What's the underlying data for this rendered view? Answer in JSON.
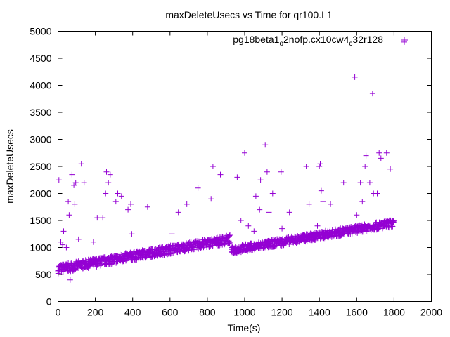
{
  "chart_data": {
    "type": "scatter",
    "title": "maxDeleteUsecs vs Time for qr100.L1",
    "xlabel": "Time(s)",
    "ylabel": "maxDeleteUsecs",
    "xlim": [
      0,
      2000
    ],
    "ylim": [
      0,
      5000
    ],
    "x_ticks": [
      "0",
      "200",
      "400",
      "600",
      "800",
      "1000",
      "1200",
      "1400",
      "1600",
      "1800",
      "2000"
    ],
    "y_ticks": [
      "0",
      "500",
      "1000",
      "1500",
      "2000",
      "2500",
      "3000",
      "3500",
      "4000",
      "4500",
      "5000"
    ],
    "grid": false,
    "legend_position": "top-right",
    "marker": "+",
    "series": [
      {
        "legend_parts": [
          "pg18beta1",
          "o",
          "2nofp.cx10cw4",
          "c",
          "32r128"
        ],
        "color": "#9400d3",
        "trend": [
          {
            "from": [
              0,
              600
            ],
            "to": [
              920,
              1150
            ],
            "spread": 160
          },
          {
            "from": [
              930,
              950
            ],
            "to": [
              1800,
              1450
            ],
            "spread": 140
          }
        ],
        "points": [
          [
            5,
            2250
          ],
          [
            15,
            1100
          ],
          [
            25,
            1050
          ],
          [
            30,
            1300
          ],
          [
            45,
            1000
          ],
          [
            55,
            1850
          ],
          [
            60,
            1600
          ],
          [
            65,
            400
          ],
          [
            75,
            2350
          ],
          [
            85,
            2150
          ],
          [
            90,
            1800
          ],
          [
            95,
            2200
          ],
          [
            110,
            1150
          ],
          [
            125,
            2550
          ],
          [
            140,
            2200
          ],
          [
            190,
            1100
          ],
          [
            210,
            1550
          ],
          [
            240,
            1550
          ],
          [
            255,
            2000
          ],
          [
            260,
            2400
          ],
          [
            270,
            2200
          ],
          [
            280,
            2350
          ],
          [
            310,
            1850
          ],
          [
            320,
            2000
          ],
          [
            340,
            1950
          ],
          [
            375,
            1700
          ],
          [
            390,
            1800
          ],
          [
            395,
            1250
          ],
          [
            480,
            1750
          ],
          [
            610,
            1250
          ],
          [
            645,
            1650
          ],
          [
            690,
            1800
          ],
          [
            750,
            2100
          ],
          [
            820,
            1900
          ],
          [
            830,
            2500
          ],
          [
            870,
            2350
          ],
          [
            960,
            2300
          ],
          [
            980,
            1500
          ],
          [
            1000,
            2750
          ],
          [
            1020,
            1400
          ],
          [
            1050,
            1300
          ],
          [
            1060,
            1950
          ],
          [
            1080,
            1700
          ],
          [
            1085,
            2250
          ],
          [
            1110,
            2900
          ],
          [
            1120,
            2400
          ],
          [
            1130,
            1650
          ],
          [
            1150,
            2000
          ],
          [
            1195,
            2400
          ],
          [
            1200,
            1350
          ],
          [
            1240,
            1650
          ],
          [
            1330,
            2500
          ],
          [
            1345,
            1800
          ],
          [
            1390,
            1400
          ],
          [
            1400,
            2500
          ],
          [
            1405,
            2550
          ],
          [
            1410,
            2050
          ],
          [
            1420,
            1850
          ],
          [
            1460,
            1800
          ],
          [
            1530,
            2200
          ],
          [
            1590,
            4150
          ],
          [
            1600,
            1600
          ],
          [
            1620,
            2200
          ],
          [
            1630,
            1850
          ],
          [
            1645,
            2500
          ],
          [
            1650,
            2700
          ],
          [
            1670,
            2200
          ],
          [
            1685,
            3850
          ],
          [
            1690,
            2000
          ],
          [
            1710,
            2000
          ],
          [
            1720,
            2750
          ],
          [
            1730,
            2650
          ],
          [
            1760,
            2750
          ],
          [
            1780,
            2450
          ],
          [
            1855,
            4800
          ]
        ]
      }
    ]
  }
}
